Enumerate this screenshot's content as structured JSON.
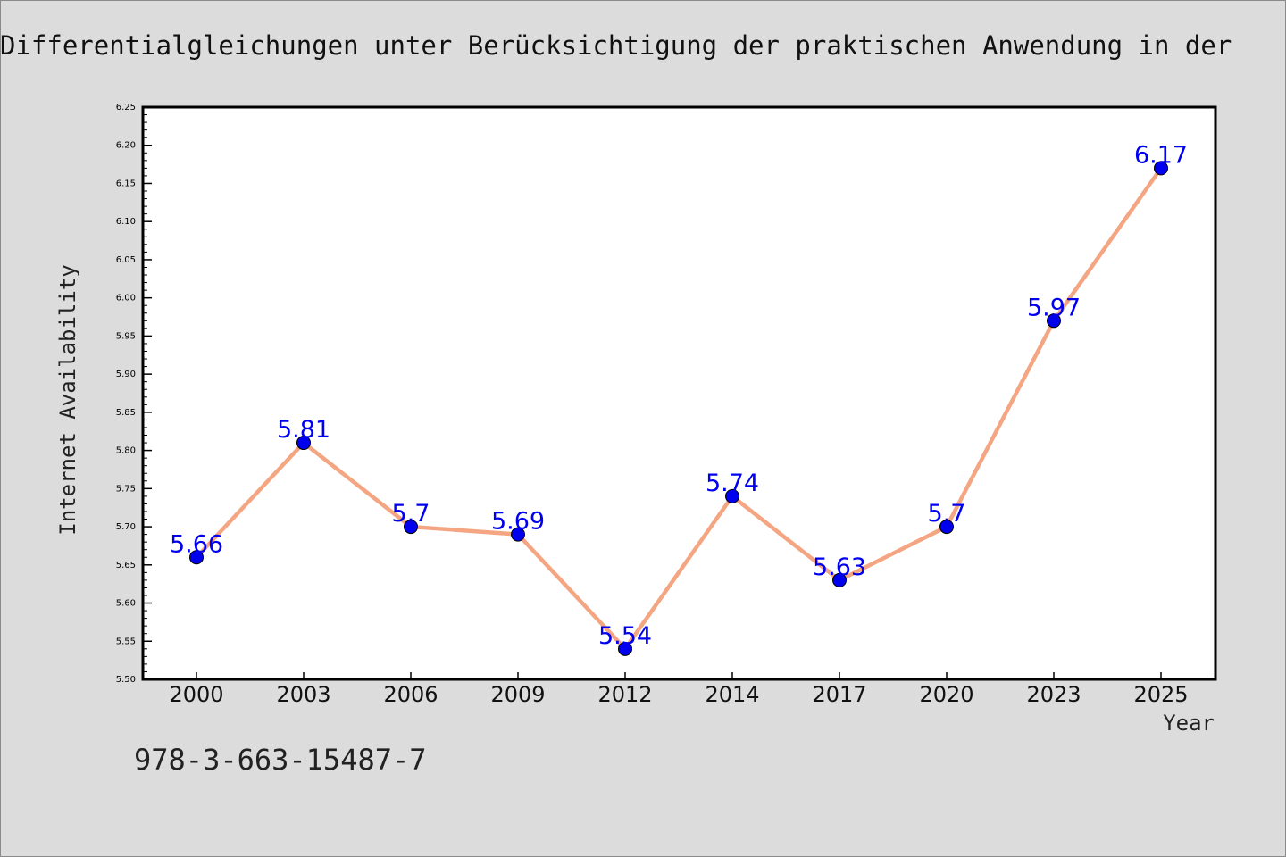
{
  "chart_data": {
    "type": "line",
    "title": "Differentialgleichungen unter Berücksichtigung der praktischen Anwendung in der",
    "xlabel": "Year",
    "ylabel": "Internet Availability",
    "categories": [
      "2000",
      "2003",
      "2006",
      "2009",
      "2012",
      "2014",
      "2017",
      "2020",
      "2023",
      "2025"
    ],
    "series": [
      {
        "values": [
          5.66,
          5.81,
          5.7,
          5.69,
          5.54,
          5.74,
          5.63,
          5.7,
          5.97,
          6.17
        ],
        "labels": [
          "5.66",
          "5.81",
          "5.7",
          "5.69",
          "5.54",
          "5.74",
          "5.63",
          "5.7",
          "5.97",
          "6.17"
        ]
      }
    ],
    "yticks": [
      "5.50",
      "5.55",
      "5.60",
      "5.65",
      "5.70",
      "5.75",
      "5.80",
      "5.85",
      "5.90",
      "5.95",
      "6.00",
      "6.05",
      "6.10",
      "6.15",
      "6.20",
      "6.25"
    ],
    "ylim": [
      5.5,
      6.25
    ],
    "grid": false,
    "colors": {
      "line": "#f4a582",
      "marker": "#0000ee",
      "label": "#0000ee"
    }
  },
  "footer": {
    "isbn": "978-3-663-15487-7"
  }
}
